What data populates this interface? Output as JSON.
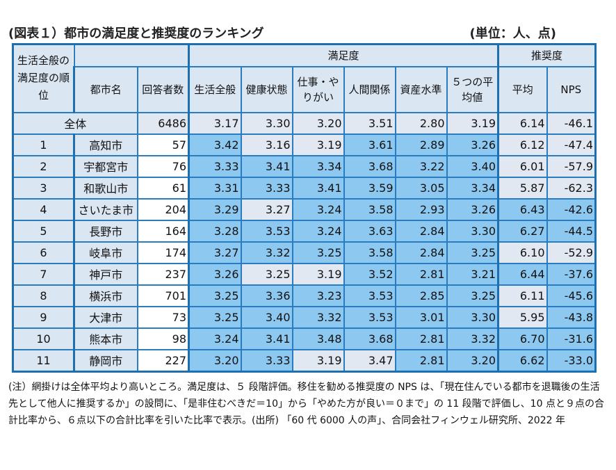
{
  "title": "(図表１）都市の満足度と推奨度のランキング",
  "unit": "(単位：人、点)",
  "headers": {
    "rank_group": "生活全般の満足度の順位",
    "satisfaction_group": "満足度",
    "recommend_group": "推奨度",
    "city": "都市名",
    "respondents": "回答者数",
    "life_overall": "生活全般",
    "health": "健康状態",
    "work": "仕事・やりがい",
    "relations": "人間関係",
    "assets": "資産水準",
    "avg5": "５つの平均値",
    "rec_avg": "平均",
    "nps": "NPS"
  },
  "total": {
    "label": "全体",
    "respondents": "6486",
    "life_overall": "3.17",
    "health": "3.30",
    "work": "3.20",
    "relations": "3.51",
    "assets": "2.80",
    "avg5": "3.19",
    "rec_avg": "6.14",
    "nps": "-46.1"
  },
  "rows": [
    {
      "rank": "1",
      "city": "高知市",
      "respondents": "57",
      "life_overall": "3.42",
      "health": "3.16",
      "work": "3.19",
      "relations": "3.61",
      "assets": "2.89",
      "avg5": "3.26",
      "rec_avg": "6.12",
      "nps": "-47.4"
    },
    {
      "rank": "2",
      "city": "宇都宮市",
      "respondents": "76",
      "life_overall": "3.33",
      "health": "3.41",
      "work": "3.34",
      "relations": "3.68",
      "assets": "3.22",
      "avg5": "3.40",
      "rec_avg": "6.01",
      "nps": "-57.9"
    },
    {
      "rank": "3",
      "city": "和歌山市",
      "respondents": "61",
      "life_overall": "3.31",
      "health": "3.33",
      "work": "3.41",
      "relations": "3.59",
      "assets": "3.05",
      "avg5": "3.34",
      "rec_avg": "5.87",
      "nps": "-62.3"
    },
    {
      "rank": "4",
      "city": "さいたま市",
      "respondents": "204",
      "life_overall": "3.29",
      "health": "3.27",
      "work": "3.24",
      "relations": "3.58",
      "assets": "2.93",
      "avg5": "3.26",
      "rec_avg": "6.43",
      "nps": "-42.6"
    },
    {
      "rank": "5",
      "city": "長野市",
      "respondents": "164",
      "life_overall": "3.28",
      "health": "3.53",
      "work": "3.24",
      "relations": "3.63",
      "assets": "2.84",
      "avg5": "3.30",
      "rec_avg": "6.27",
      "nps": "-44.5"
    },
    {
      "rank": "6",
      "city": "岐阜市",
      "respondents": "174",
      "life_overall": "3.27",
      "health": "3.32",
      "work": "3.25",
      "relations": "3.58",
      "assets": "2.84",
      "avg5": "3.25",
      "rec_avg": "6.10",
      "nps": "-52.9"
    },
    {
      "rank": "7",
      "city": "神戸市",
      "respondents": "237",
      "life_overall": "3.26",
      "health": "3.25",
      "work": "3.19",
      "relations": "3.52",
      "assets": "2.81",
      "avg5": "3.21",
      "rec_avg": "6.44",
      "nps": "-37.6"
    },
    {
      "rank": "8",
      "city": "横浜市",
      "respondents": "701",
      "life_overall": "3.25",
      "health": "3.36",
      "work": "3.23",
      "relations": "3.53",
      "assets": "2.85",
      "avg5": "3.25",
      "rec_avg": "6.11",
      "nps": "-45.6"
    },
    {
      "rank": "9",
      "city": "大津市",
      "respondents": "73",
      "life_overall": "3.25",
      "health": "3.40",
      "work": "3.32",
      "relations": "3.53",
      "assets": "3.01",
      "avg5": "3.30",
      "rec_avg": "5.95",
      "nps": "-43.8"
    },
    {
      "rank": "10",
      "city": "熊本市",
      "respondents": "98",
      "life_overall": "3.24",
      "health": "3.41",
      "work": "3.48",
      "relations": "3.68",
      "assets": "2.81",
      "avg5": "3.32",
      "rec_avg": "6.70",
      "nps": "-31.6"
    },
    {
      "rank": "11",
      "city": "静岡市",
      "respondents": "227",
      "life_overall": "3.20",
      "health": "3.33",
      "work": "3.19",
      "relations": "3.47",
      "assets": "2.81",
      "avg5": "3.20",
      "rec_avg": "6.62",
      "nps": "-33.0"
    }
  ],
  "note": "(注）網掛けは全体平均より高いところ。満足度は、５ 段階評価。移住を勧める推奨度の NPS は、「現在住んでいる都市を退職後の生活先として他人に推奨するか」の設問に、「是非住むべきだ＝10」から「やめた方が良い＝０まで」の 11 段階で評価し、10 点と９点の合計比率から、６点以下の合計比率を引いた比率で表示。(出所) 「60 代 6000 人の声」、合同会社フィンウェル研究所、2022 年",
  "colors": {
    "border": "#1e6fb0",
    "header_bg": "#dbe6f3",
    "highlight": "#8cc8f0",
    "light": "#e2e8f1"
  }
}
